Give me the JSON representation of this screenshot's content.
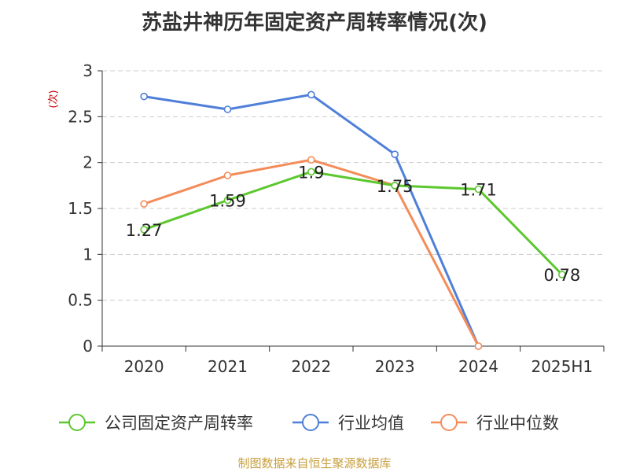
{
  "chart_data": {
    "type": "line",
    "title": "苏盐井神历年固定资产周转率情况(次)",
    "ylabel": "(次)",
    "categories": [
      "2020",
      "2021",
      "2022",
      "2023",
      "2024",
      "2025H1"
    ],
    "ylim": [
      0,
      3
    ],
    "yticks": [
      "0",
      "0.5",
      "1",
      "1.5",
      "2",
      "2.5",
      "3"
    ],
    "ytick_values": [
      0,
      0.5,
      1,
      1.5,
      2,
      2.5,
      3
    ],
    "grid": true,
    "legend_position": "bottom",
    "series": [
      {
        "name": "公司固定资产周转率",
        "color": "#5cc72e",
        "values": [
          1.27,
          1.59,
          1.9,
          1.75,
          1.71,
          0.78
        ],
        "labels": [
          "1.27",
          "1.59",
          "1.9",
          "1.75",
          "1.71",
          "0.78"
        ]
      },
      {
        "name": "行业均值",
        "color": "#4f7fd9",
        "values": [
          2.72,
          2.58,
          2.74,
          2.09,
          0,
          null
        ]
      },
      {
        "name": "行业中位数",
        "color": "#f48c5a",
        "values": [
          1.55,
          1.86,
          2.03,
          1.75,
          0,
          null
        ]
      }
    ]
  },
  "source": "制图数据来自恒生聚源数据库"
}
